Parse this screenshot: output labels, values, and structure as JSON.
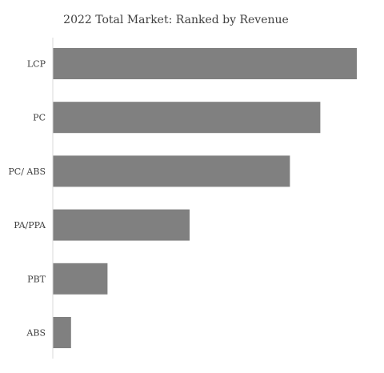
{
  "chart_data": {
    "type": "bar",
    "orientation": "horizontal",
    "title": "2022 Total Market: Ranked by Revenue",
    "categories": [
      "LCP",
      "PC",
      "PC/ ABS",
      "PA/PPA",
      "PBT",
      "ABS"
    ],
    "values": [
      100,
      88,
      78,
      45,
      18,
      6
    ],
    "xlim": [
      0,
      100
    ],
    "grid": false,
    "legend": "none",
    "bar_color": "#808080",
    "axis_color": "#d9d9d9"
  }
}
